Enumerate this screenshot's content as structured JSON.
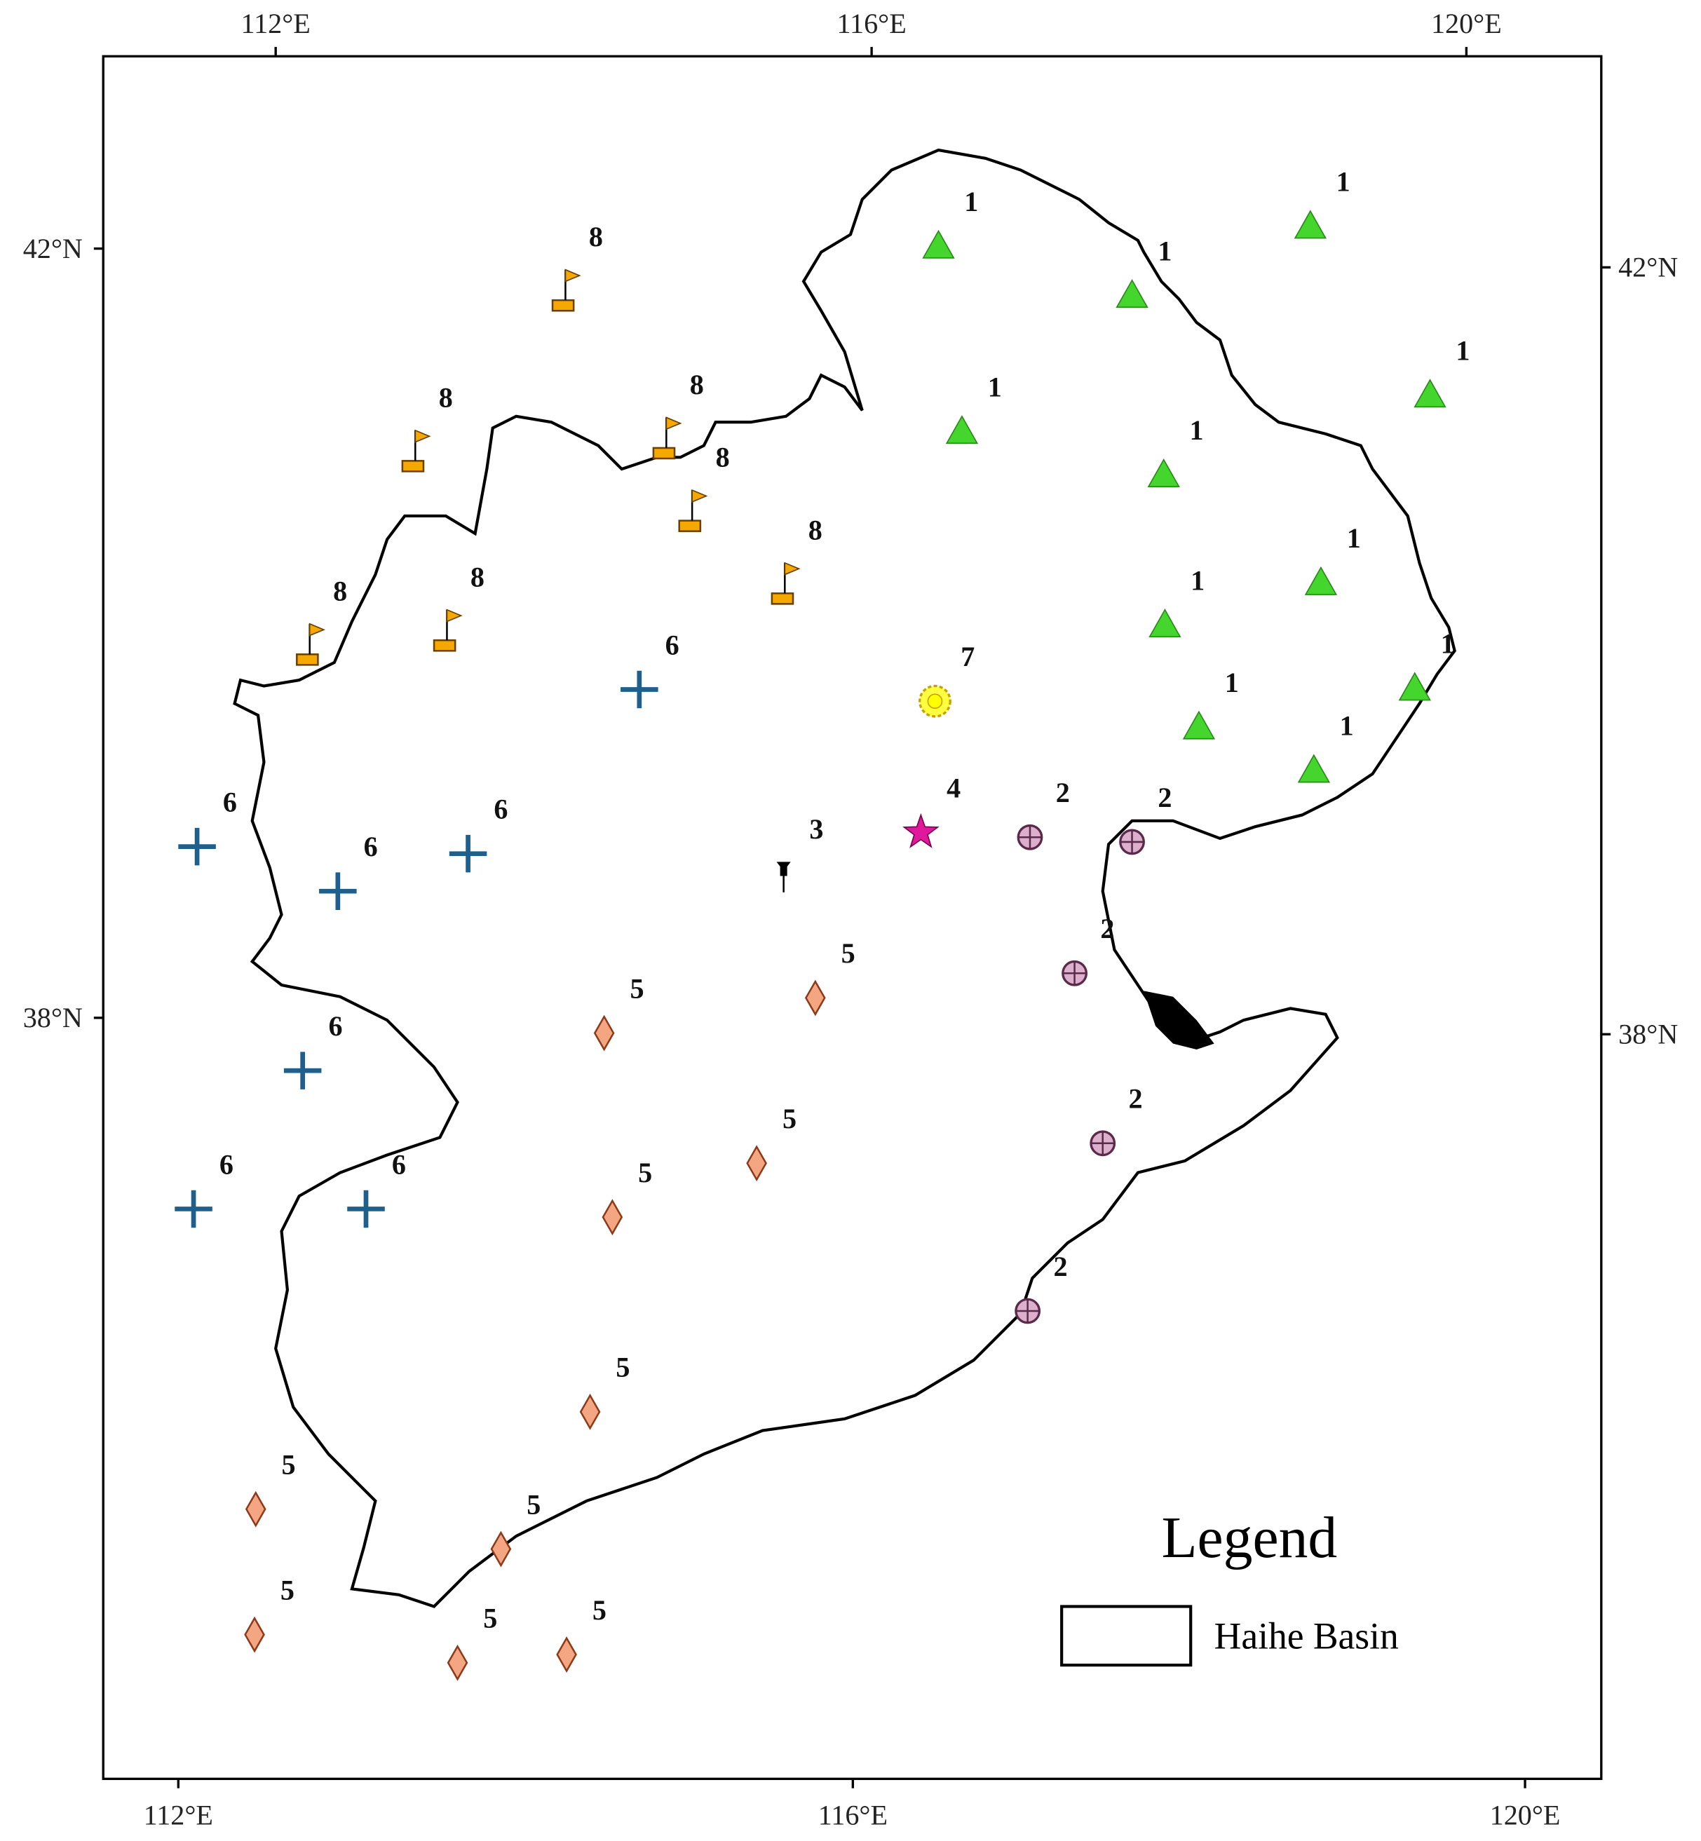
{
  "axes": {
    "top": [
      "112°E",
      "116°E",
      "120°E"
    ],
    "bottom": [
      "112°E",
      "116°E",
      "120°E"
    ],
    "left": [
      "42°N",
      "38°N"
    ],
    "right": [
      "42°N",
      "38°N"
    ]
  },
  "legend": {
    "title": "Legend",
    "item": "Haihe Basin"
  },
  "stations": [
    {
      "label": "1",
      "symbol": "triangle"
    },
    {
      "label": "1",
      "symbol": "triangle"
    },
    {
      "label": "1",
      "symbol": "triangle"
    },
    {
      "label": "1",
      "symbol": "triangle"
    },
    {
      "label": "1",
      "symbol": "triangle"
    },
    {
      "label": "1",
      "symbol": "triangle"
    },
    {
      "label": "1",
      "symbol": "triangle"
    },
    {
      "label": "1",
      "symbol": "triangle"
    },
    {
      "label": "1",
      "symbol": "triangle"
    },
    {
      "label": "1",
      "symbol": "triangle"
    },
    {
      "label": "1",
      "symbol": "triangle"
    },
    {
      "label": "2",
      "symbol": "circle-plus"
    },
    {
      "label": "2",
      "symbol": "circle-plus"
    },
    {
      "label": "2",
      "symbol": "circle-plus"
    },
    {
      "label": "2",
      "symbol": "circle-plus"
    },
    {
      "label": "2",
      "symbol": "circle-plus"
    },
    {
      "label": "3",
      "symbol": "pushpin"
    },
    {
      "label": "4",
      "symbol": "star"
    },
    {
      "label": "7",
      "symbol": "sun"
    },
    {
      "label": "5",
      "symbol": "diamond"
    },
    {
      "label": "5",
      "symbol": "diamond"
    },
    {
      "label": "5",
      "symbol": "diamond"
    },
    {
      "label": "5",
      "symbol": "diamond"
    },
    {
      "label": "5",
      "symbol": "diamond"
    },
    {
      "label": "5",
      "symbol": "diamond"
    },
    {
      "label": "5",
      "symbol": "diamond"
    },
    {
      "label": "5",
      "symbol": "diamond"
    },
    {
      "label": "5",
      "symbol": "diamond"
    },
    {
      "label": "5",
      "symbol": "diamond"
    },
    {
      "label": "6",
      "symbol": "plus"
    },
    {
      "label": "6",
      "symbol": "plus"
    },
    {
      "label": "6",
      "symbol": "plus"
    },
    {
      "label": "6",
      "symbol": "plus"
    },
    {
      "label": "6",
      "symbol": "plus"
    },
    {
      "label": "6",
      "symbol": "plus"
    },
    {
      "label": "6",
      "symbol": "plus"
    },
    {
      "label": "8",
      "symbol": "flag"
    },
    {
      "label": "8",
      "symbol": "flag"
    },
    {
      "label": "8",
      "symbol": "flag"
    },
    {
      "label": "8",
      "symbol": "flag"
    },
    {
      "label": "8",
      "symbol": "flag"
    },
    {
      "label": "8",
      "symbol": "flag"
    },
    {
      "label": "8",
      "symbol": "flag"
    }
  ]
}
